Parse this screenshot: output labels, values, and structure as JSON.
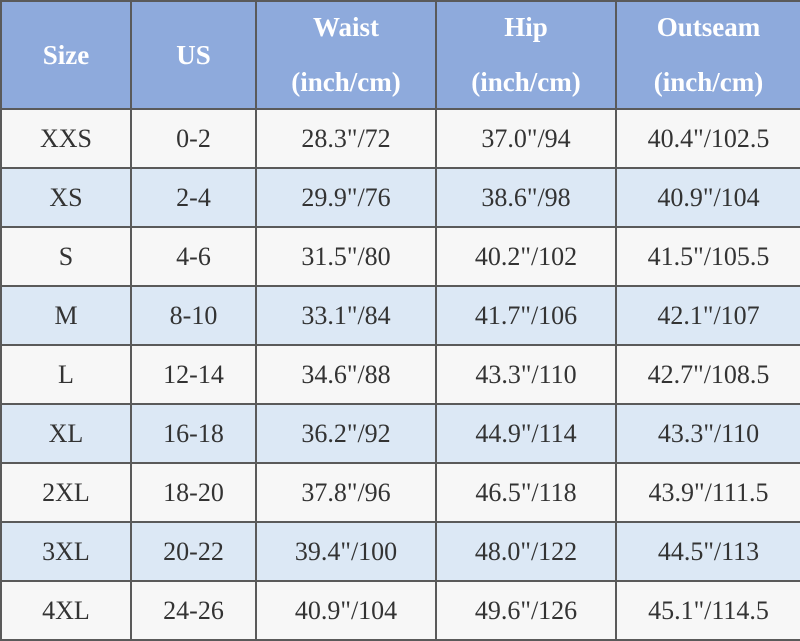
{
  "table": {
    "header": [
      {
        "label": "Size"
      },
      {
        "label": "US"
      },
      {
        "label": "Waist",
        "unit": "(inch/cm)"
      },
      {
        "label": "Hip",
        "unit": "(inch/cm)"
      },
      {
        "label": "Outseam",
        "unit": "(inch/cm)"
      }
    ],
    "rows": [
      [
        "XXS",
        "0-2",
        "28.3\"/72",
        "37.0\"/94",
        "40.4\"/102.5"
      ],
      [
        "XS",
        "2-4",
        "29.9\"/76",
        "38.6\"/98",
        "40.9\"/104"
      ],
      [
        "S",
        "4-6",
        "31.5\"/80",
        "40.2\"/102",
        "41.5\"/105.5"
      ],
      [
        "M",
        "8-10",
        "33.1\"/84",
        "41.7\"/106",
        "42.1\"/107"
      ],
      [
        "L",
        "12-14",
        "34.6\"/88",
        "43.3\"/110",
        "42.7\"/108.5"
      ],
      [
        "XL",
        "16-18",
        "36.2\"/92",
        "44.9\"/114",
        "43.3\"/110"
      ],
      [
        "2XL",
        "18-20",
        "37.8\"/96",
        "46.5\"/118",
        "43.9\"/111.5"
      ],
      [
        "3XL",
        "20-22",
        "39.4\"/100",
        "48.0\"/122",
        "44.5\"/113"
      ],
      [
        "4XL",
        "24-26",
        "40.9\"/104",
        "49.6\"/126",
        "45.1\"/114.5"
      ]
    ]
  }
}
